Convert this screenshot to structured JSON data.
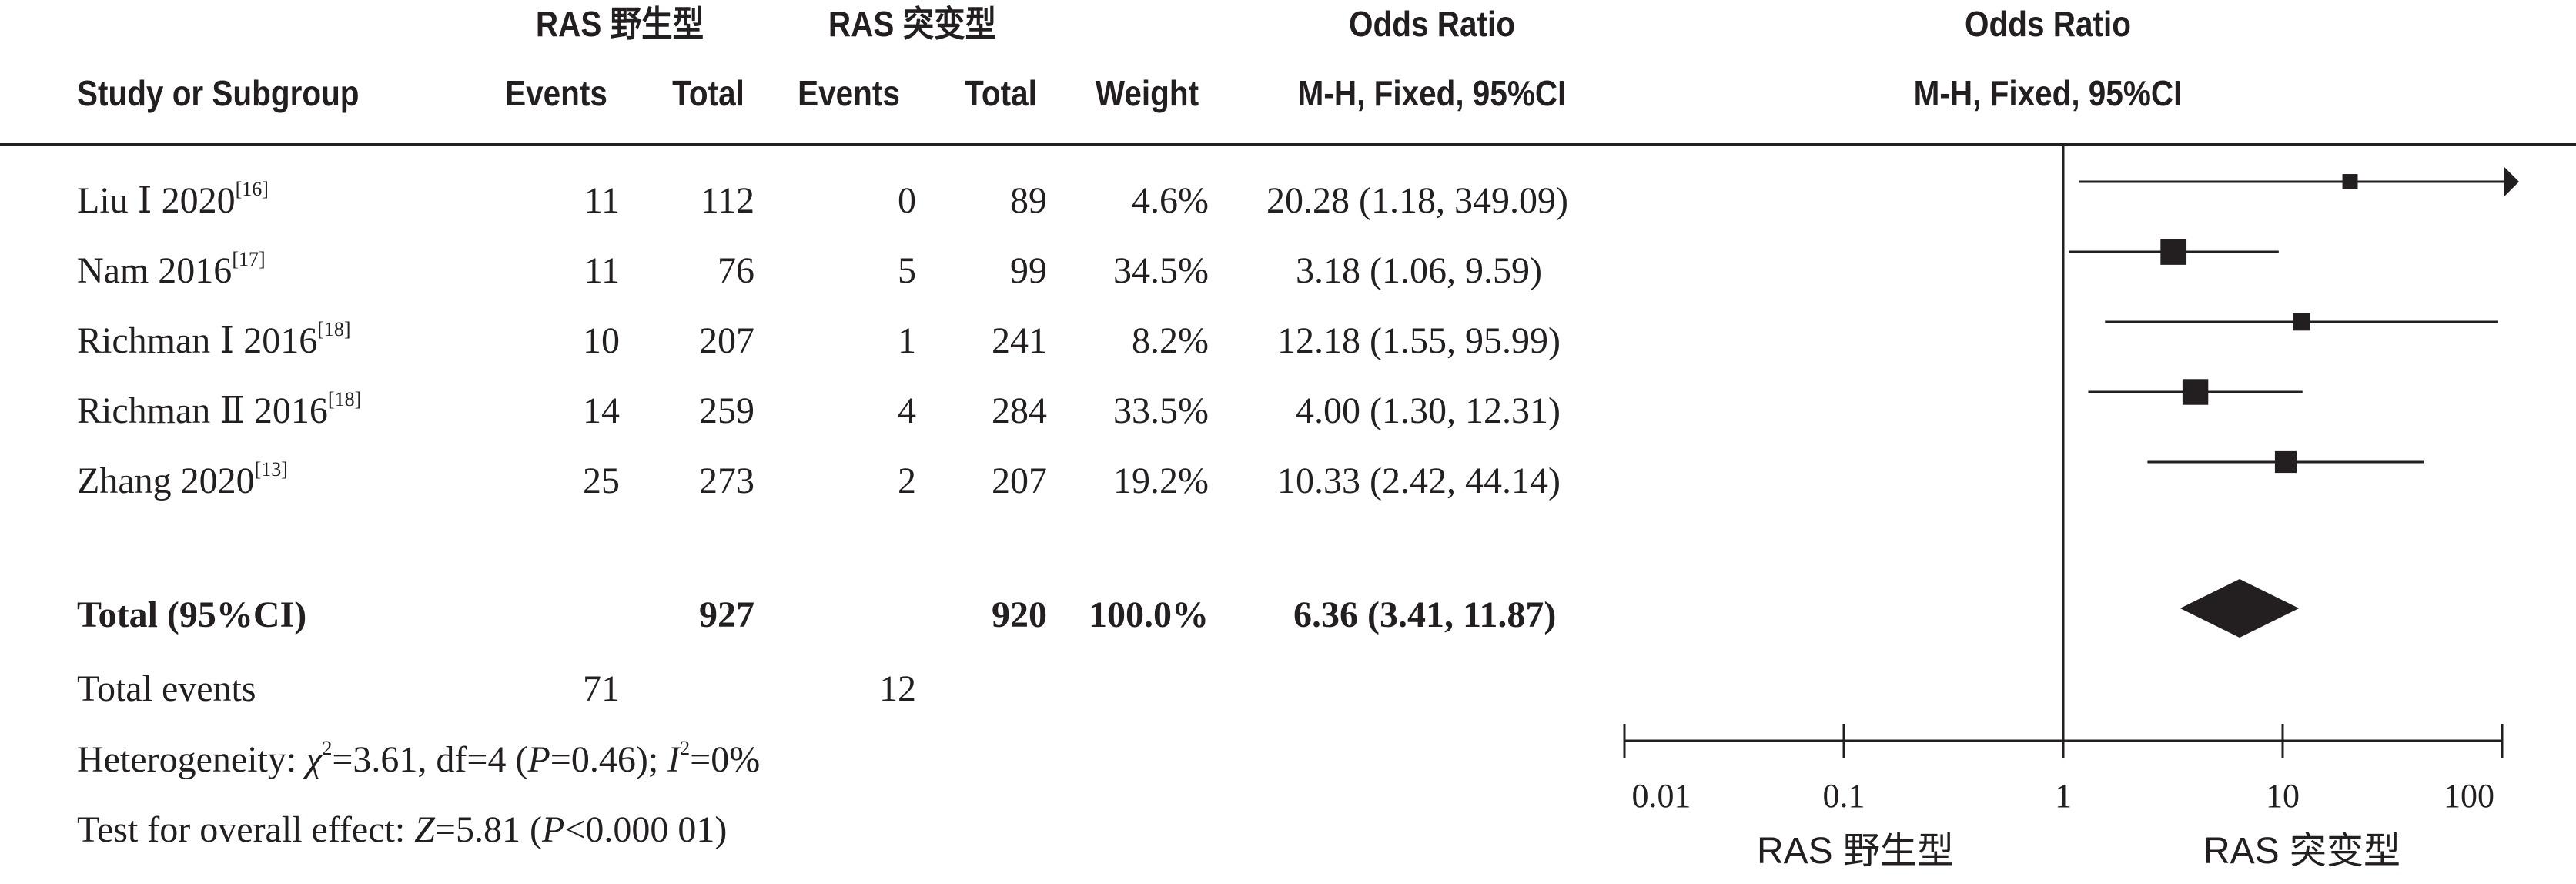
{
  "headers": {
    "group_exp": "RAS 野生型",
    "group_ctl": "RAS 突变型",
    "study": "Study or Subgroup",
    "events": "Events",
    "total": "Total",
    "weight": "Weight",
    "or_title": "Odds Ratio",
    "or_method": "M-H, Fixed, 95%CI",
    "plot_title": "Odds Ratio",
    "plot_method": "M-H, Fixed, 95%CI"
  },
  "studies": [
    {
      "name": "Liu Ⅰ 2020",
      "ref": "[16]",
      "e_events": "11",
      "e_total": "112",
      "c_events": "0",
      "c_total": "89",
      "weight": "4.6%",
      "ci_text": "20.28 (1.18, 349.09)"
    },
    {
      "name": "Nam 2016",
      "ref": "[17]",
      "e_events": "11",
      "e_total": "76",
      "c_events": "5",
      "c_total": "99",
      "weight": "34.5%",
      "ci_text": "3.18 (1.06, 9.59)"
    },
    {
      "name": "Richman Ⅰ 2016",
      "ref": "[18]",
      "e_events": "10",
      "e_total": "207",
      "c_events": "1",
      "c_total": "241",
      "weight": "8.2%",
      "ci_text": "12.18 (1.55, 95.99)"
    },
    {
      "name": "Richman Ⅱ 2016",
      "ref": "[18]",
      "e_events": "14",
      "e_total": "259",
      "c_events": "4",
      "c_total": "284",
      "weight": "33.5%",
      "ci_text": "4.00 (1.30, 12.31)"
    },
    {
      "name": "Zhang 2020",
      "ref": "[13]",
      "e_events": "25",
      "e_total": "273",
      "c_events": "2",
      "c_total": "207",
      "weight": "19.2%",
      "ci_text": "10.33 (2.42, 44.14)"
    }
  ],
  "total": {
    "label": "Total (95%CI)",
    "e_total": "927",
    "c_total": "920",
    "weight": "100.0%",
    "ci_text": "6.36 (3.41, 11.87)"
  },
  "total_events": {
    "label": "Total events",
    "e_events": "71",
    "c_events": "12"
  },
  "heterogeneity": {
    "prefix": "Heterogeneity: ",
    "chi_symbol": "χ",
    "chi_value": "=3.61, df=4 (",
    "p_symbol": "P",
    "p_value": "=0.46); ",
    "i_symbol": "I",
    "i_value": "=0%"
  },
  "overall_effect": {
    "prefix": "Test for overall effect: ",
    "z_symbol": "Z",
    "z_value": "=5.81 (",
    "p_symbol": "P",
    "p_value": "<0.000 01)"
  },
  "axis": {
    "favours_left": "RAS 野生型",
    "favours_right": "RAS 突变型",
    "ticks": [
      "0.01",
      "0.1",
      "1",
      "10",
      "100"
    ]
  },
  "chart_data": {
    "type": "scatter",
    "subtype": "forest",
    "title": "Odds Ratio",
    "xscale": "log",
    "xlim": [
      0.01,
      100
    ],
    "reference_line": 1,
    "colors": {
      "ink": "#231f20"
    },
    "series": [
      {
        "name": "Liu Ⅰ 2020",
        "or": 20.28,
        "lower": 1.18,
        "upper": 349.09,
        "weight": 4.6,
        "arrow_right": true
      },
      {
        "name": "Nam 2016",
        "or": 3.18,
        "lower": 1.06,
        "upper": 9.59,
        "weight": 34.5
      },
      {
        "name": "Richman Ⅰ 2016",
        "or": 12.18,
        "lower": 1.55,
        "upper": 95.99,
        "weight": 8.2
      },
      {
        "name": "Richman Ⅱ 2016",
        "or": 4.0,
        "lower": 1.3,
        "upper": 12.31,
        "weight": 33.5
      },
      {
        "name": "Zhang 2020",
        "or": 10.33,
        "lower": 2.42,
        "upper": 44.14,
        "weight": 19.2
      }
    ],
    "pooled": {
      "name": "Total (95%CI)",
      "or": 6.36,
      "lower": 3.41,
      "upper": 11.87
    }
  }
}
